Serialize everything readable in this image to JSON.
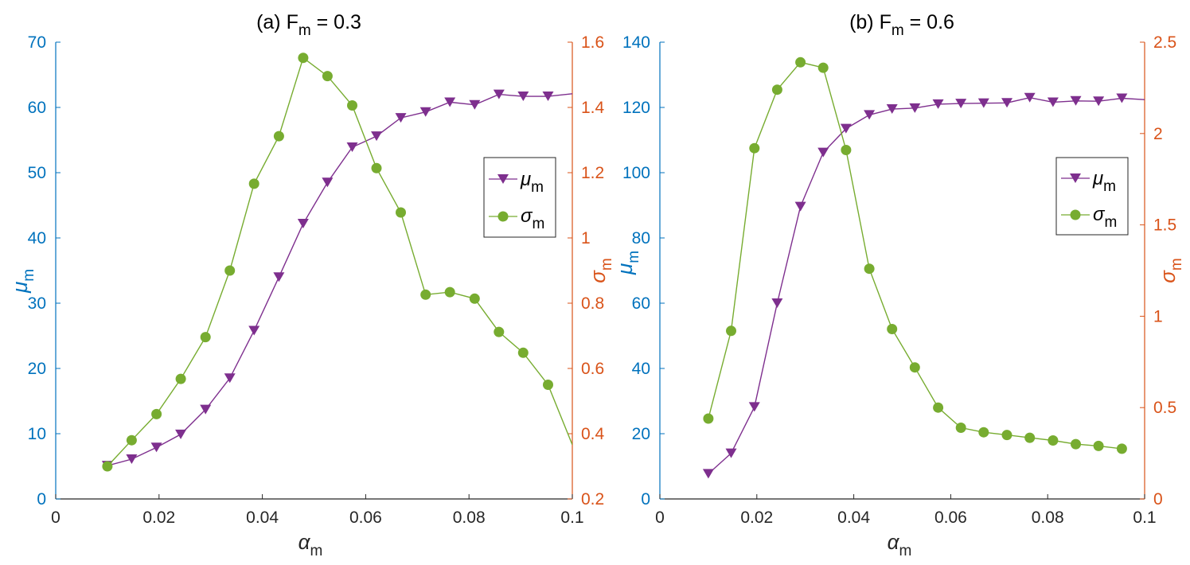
{
  "colors": {
    "mu": "#7E2F8E",
    "sigma": "#77AC30",
    "left_axis": "#0072BD",
    "right_axis": "#D95319",
    "x_axis": "#262626"
  },
  "chart_data": [
    {
      "type": "line",
      "title": "(a) F",
      "title_sub": "m",
      "title_tail": " = 0.3",
      "xlabel": "α",
      "xlabel_sub": "m",
      "ylabel_left": "μ",
      "ylabel_left_sub": "m",
      "ylabel_right": "σ",
      "ylabel_right_sub": "m",
      "xlim": [
        0,
        0.1
      ],
      "ylim_left": [
        0,
        70
      ],
      "ylim_right": [
        0.2,
        1.6
      ],
      "x_ticks": [
        0,
        0.02,
        0.04,
        0.06,
        0.08,
        0.1
      ],
      "x_tick_labels": [
        "0",
        "0.02",
        "0.04",
        "0.06",
        "0.08",
        "0.1"
      ],
      "left_ticks": [
        0,
        10,
        20,
        30,
        40,
        50,
        60,
        70
      ],
      "left_tick_labels": [
        "0",
        "10",
        "20",
        "30",
        "40",
        "50",
        "60",
        "70"
      ],
      "right_ticks": [
        0.2,
        0.4,
        0.6,
        0.8,
        1.0,
        1.2,
        1.4,
        1.6
      ],
      "right_tick_labels": [
        "0.2",
        "0.4",
        "0.6",
        "0.8",
        "1",
        "1.2",
        "1.4",
        "1.6"
      ],
      "legend": [
        {
          "label": "μ",
          "sub": "m",
          "series": "mu"
        },
        {
          "label": "σ",
          "sub": "m",
          "series": "sigma"
        }
      ],
      "legend_position": "right",
      "x": [
        0.01,
        0.0147,
        0.0195,
        0.0242,
        0.029,
        0.0337,
        0.0384,
        0.0432,
        0.0479,
        0.0526,
        0.0574,
        0.0621,
        0.0668,
        0.0716,
        0.0763,
        0.0811,
        0.0858,
        0.0905,
        0.0953,
        0.1
      ],
      "series": [
        {
          "name": "mu",
          "axis": "left",
          "marker": "triangle-down",
          "values": [
            5.1,
            6.1,
            7.9,
            9.9,
            13.7,
            18.5,
            25.8,
            34,
            42.2,
            48.5,
            53.9,
            55.6,
            58.4,
            59.3,
            60.8,
            60.4,
            62.0,
            61.7,
            61.7,
            62.1
          ]
        },
        {
          "name": "sigma",
          "axis": "right",
          "marker": "circle",
          "values": [
            0.3,
            0.38,
            0.46,
            0.568,
            0.696,
            0.9,
            1.166,
            1.312,
            1.552,
            1.496,
            1.406,
            1.214,
            1.078,
            0.826,
            0.834,
            0.814,
            0.712,
            0.648,
            0.55,
            0.366
          ]
        }
      ]
    },
    {
      "type": "line",
      "title": "(b) F",
      "title_sub": "m",
      "title_tail": " = 0.6",
      "xlabel": "α",
      "xlabel_sub": "m",
      "ylabel_left": "μ",
      "ylabel_left_sub": "m",
      "ylabel_right": "σ",
      "ylabel_right_sub": "m",
      "xlim": [
        0,
        0.1
      ],
      "ylim_left": [
        0,
        140
      ],
      "ylim_right": [
        0,
        2.5
      ],
      "x_ticks": [
        0,
        0.02,
        0.04,
        0.06,
        0.08,
        0.1
      ],
      "x_tick_labels": [
        "0",
        "0.02",
        "0.04",
        "0.06",
        "0.08",
        "0.1"
      ],
      "left_ticks": [
        0,
        20,
        40,
        60,
        80,
        100,
        120,
        140
      ],
      "left_tick_labels": [
        "0",
        "20",
        "40",
        "60",
        "80",
        "100",
        "120",
        "140"
      ],
      "right_ticks": [
        0,
        0.5,
        1,
        1.5,
        2,
        2.5
      ],
      "right_tick_labels": [
        "0",
        "0.5",
        "1",
        "1.5",
        "2",
        "2.5"
      ],
      "legend": [
        {
          "label": "μ",
          "sub": "m",
          "series": "mu"
        },
        {
          "label": "σ",
          "sub": "m",
          "series": "sigma"
        }
      ],
      "legend_position": "right",
      "x": [
        0.01,
        0.0147,
        0.0195,
        0.0242,
        0.029,
        0.0337,
        0.0384,
        0.0432,
        0.0479,
        0.0526,
        0.0574,
        0.0621,
        0.0668,
        0.0716,
        0.0763,
        0.0811,
        0.0858,
        0.0905,
        0.0953,
        0.1
      ],
      "series": [
        {
          "name": "mu",
          "axis": "left",
          "marker": "triangle-down",
          "values": [
            7.7,
            14.0,
            28.2,
            60.0,
            89.6,
            106.2,
            113.5,
            117.7,
            119.5,
            119.8,
            121.0,
            121.2,
            121.3,
            121.4,
            123.0,
            121.6,
            122.0,
            121.9,
            122.8,
            122.4
          ]
        },
        {
          "name": "sigma",
          "axis": "right",
          "marker": "circle",
          "values": [
            0.44,
            0.92,
            1.92,
            2.24,
            2.39,
            2.36,
            1.91,
            1.26,
            0.93,
            0.72,
            0.5,
            0.39,
            0.365,
            0.35,
            0.335,
            0.32,
            0.3,
            0.29,
            0.275,
            null
          ]
        }
      ]
    }
  ]
}
